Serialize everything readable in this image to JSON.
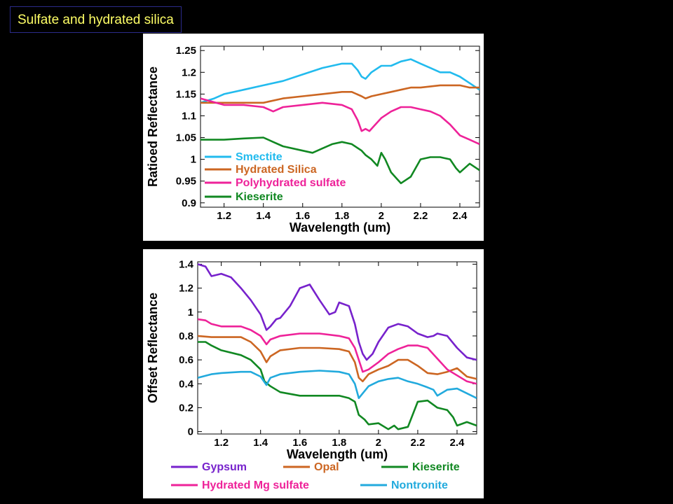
{
  "slide": {
    "title": "Sulfate and hydrated silica"
  },
  "chart_data": [
    {
      "type": "line",
      "xlabel": "Wavelength (um)",
      "ylabel": "Ratioed Reflectance",
      "xlim": [
        1.08,
        2.5
      ],
      "ylim": [
        0.89,
        1.26
      ],
      "xticks": [
        "1.2",
        "1.4",
        "1.6",
        "1.8",
        "2",
        "2.2",
        "2.4"
      ],
      "yticks": [
        "0.9",
        "0.95",
        "1",
        "1.05",
        "1.1",
        "1.15",
        "1.2",
        "1.25"
      ],
      "legend_position": "bottom-left inside",
      "series": [
        {
          "name": "Smectite",
          "color": "#22bbee",
          "x": [
            1.08,
            1.15,
            1.2,
            1.3,
            1.4,
            1.5,
            1.6,
            1.7,
            1.8,
            1.85,
            1.88,
            1.9,
            1.92,
            1.95,
            2.0,
            2.05,
            2.1,
            2.15,
            2.2,
            2.25,
            2.3,
            2.35,
            2.4,
            2.45,
            2.5
          ],
          "y": [
            1.13,
            1.14,
            1.15,
            1.16,
            1.17,
            1.18,
            1.195,
            1.21,
            1.22,
            1.22,
            1.205,
            1.19,
            1.185,
            1.2,
            1.215,
            1.215,
            1.225,
            1.23,
            1.22,
            1.21,
            1.2,
            1.2,
            1.19,
            1.175,
            1.16
          ]
        },
        {
          "name": "Hydrated Silica",
          "color": "#cc6622",
          "x": [
            1.08,
            1.15,
            1.2,
            1.3,
            1.4,
            1.5,
            1.6,
            1.7,
            1.8,
            1.85,
            1.9,
            1.92,
            1.95,
            2.0,
            2.05,
            2.1,
            2.15,
            2.2,
            2.3,
            2.4,
            2.45,
            2.5
          ],
          "y": [
            1.13,
            1.13,
            1.13,
            1.13,
            1.13,
            1.14,
            1.145,
            1.15,
            1.155,
            1.155,
            1.145,
            1.14,
            1.145,
            1.15,
            1.155,
            1.16,
            1.165,
            1.165,
            1.17,
            1.17,
            1.165,
            1.165
          ]
        },
        {
          "name": "Polyhydrated sulfate",
          "color": "#ee2299",
          "x": [
            1.08,
            1.12,
            1.2,
            1.3,
            1.4,
            1.45,
            1.5,
            1.6,
            1.7,
            1.8,
            1.85,
            1.88,
            1.9,
            1.92,
            1.94,
            1.96,
            2.0,
            2.05,
            2.1,
            2.15,
            2.2,
            2.25,
            2.3,
            2.35,
            2.4,
            2.45,
            2.5
          ],
          "y": [
            1.14,
            1.135,
            1.125,
            1.125,
            1.12,
            1.11,
            1.12,
            1.125,
            1.13,
            1.125,
            1.115,
            1.09,
            1.065,
            1.07,
            1.065,
            1.075,
            1.095,
            1.11,
            1.12,
            1.12,
            1.115,
            1.11,
            1.1,
            1.08,
            1.055,
            1.045,
            1.035
          ]
        },
        {
          "name": "Kieserite",
          "color": "#118822",
          "x": [
            1.08,
            1.15,
            1.2,
            1.3,
            1.4,
            1.45,
            1.5,
            1.6,
            1.65,
            1.7,
            1.75,
            1.8,
            1.85,
            1.9,
            1.92,
            1.95,
            1.98,
            2.0,
            2.02,
            2.05,
            2.08,
            2.1,
            2.15,
            2.2,
            2.25,
            2.3,
            2.35,
            2.38,
            2.4,
            2.45,
            2.5
          ],
          "y": [
            1.045,
            1.045,
            1.045,
            1.048,
            1.05,
            1.04,
            1.03,
            1.02,
            1.015,
            1.025,
            1.035,
            1.04,
            1.035,
            1.02,
            1.01,
            1.0,
            0.985,
            1.015,
            1.0,
            0.97,
            0.955,
            0.945,
            0.96,
            1.0,
            1.005,
            1.005,
            1.0,
            0.98,
            0.97,
            0.99,
            0.975
          ]
        }
      ]
    },
    {
      "type": "line",
      "xlabel": "Wavelength (um)",
      "ylabel": "Offset Reflectance",
      "xlim": [
        1.08,
        2.5
      ],
      "ylim": [
        -0.02,
        1.42
      ],
      "xticks": [
        "1.2",
        "1.4",
        "1.6",
        "1.8",
        "2",
        "2.2",
        "2.4"
      ],
      "yticks": [
        "0",
        "0.2",
        "0.4",
        "0.6",
        "0.8",
        "1",
        "1.2",
        "1.4"
      ],
      "legend_position": "bottom outside",
      "series": [
        {
          "name": "Gypsum",
          "color": "#7722cc",
          "x": [
            1.08,
            1.12,
            1.15,
            1.2,
            1.25,
            1.3,
            1.35,
            1.4,
            1.43,
            1.45,
            1.48,
            1.5,
            1.55,
            1.6,
            1.65,
            1.7,
            1.75,
            1.78,
            1.8,
            1.85,
            1.88,
            1.9,
            1.92,
            1.94,
            1.97,
            2.0,
            2.05,
            2.1,
            2.15,
            2.2,
            2.25,
            2.28,
            2.3,
            2.35,
            2.4,
            2.45,
            2.5
          ],
          "y": [
            1.4,
            1.38,
            1.3,
            1.32,
            1.29,
            1.2,
            1.1,
            0.98,
            0.85,
            0.88,
            0.94,
            0.95,
            1.05,
            1.2,
            1.23,
            1.1,
            0.98,
            1.0,
            1.08,
            1.05,
            0.9,
            0.75,
            0.65,
            0.6,
            0.65,
            0.75,
            0.87,
            0.9,
            0.88,
            0.82,
            0.79,
            0.8,
            0.82,
            0.8,
            0.7,
            0.62,
            0.6
          ]
        },
        {
          "name": "Opal",
          "color": "#cc6622",
          "x": [
            1.08,
            1.15,
            1.2,
            1.3,
            1.35,
            1.4,
            1.43,
            1.45,
            1.5,
            1.6,
            1.7,
            1.8,
            1.85,
            1.88,
            1.9,
            1.92,
            1.95,
            2.0,
            2.05,
            2.1,
            2.15,
            2.2,
            2.25,
            2.3,
            2.35,
            2.4,
            2.45,
            2.5
          ],
          "y": [
            0.8,
            0.79,
            0.79,
            0.79,
            0.75,
            0.67,
            0.58,
            0.63,
            0.68,
            0.7,
            0.7,
            0.69,
            0.67,
            0.58,
            0.45,
            0.42,
            0.48,
            0.52,
            0.55,
            0.6,
            0.6,
            0.55,
            0.49,
            0.48,
            0.5,
            0.53,
            0.46,
            0.44
          ]
        },
        {
          "name": "Kieserite",
          "color": "#118822",
          "x": [
            1.08,
            1.12,
            1.15,
            1.2,
            1.3,
            1.35,
            1.4,
            1.42,
            1.45,
            1.5,
            1.6,
            1.7,
            1.8,
            1.85,
            1.88,
            1.9,
            1.93,
            1.95,
            2.0,
            2.05,
            2.08,
            2.1,
            2.15,
            2.2,
            2.25,
            2.3,
            2.35,
            2.38,
            2.4,
            2.45,
            2.5
          ],
          "y": [
            0.75,
            0.75,
            0.72,
            0.68,
            0.64,
            0.6,
            0.52,
            0.42,
            0.38,
            0.33,
            0.3,
            0.3,
            0.3,
            0.28,
            0.25,
            0.14,
            0.1,
            0.06,
            0.07,
            0.02,
            0.05,
            0.02,
            0.04,
            0.25,
            0.26,
            0.2,
            0.18,
            0.12,
            0.05,
            0.08,
            0.05
          ]
        },
        {
          "name": "Hydrated Mg sulfate",
          "color": "#ee2299",
          "x": [
            1.08,
            1.12,
            1.15,
            1.2,
            1.3,
            1.35,
            1.4,
            1.43,
            1.45,
            1.5,
            1.6,
            1.7,
            1.8,
            1.85,
            1.88,
            1.9,
            1.92,
            1.95,
            2.0,
            2.05,
            2.1,
            2.15,
            2.2,
            2.25,
            2.3,
            2.35,
            2.4,
            2.45,
            2.5
          ],
          "y": [
            0.94,
            0.93,
            0.9,
            0.88,
            0.88,
            0.85,
            0.8,
            0.73,
            0.77,
            0.8,
            0.82,
            0.82,
            0.8,
            0.78,
            0.7,
            0.6,
            0.5,
            0.52,
            0.58,
            0.65,
            0.69,
            0.72,
            0.72,
            0.7,
            0.61,
            0.52,
            0.47,
            0.42,
            0.4
          ]
        },
        {
          "name": "Nontronite",
          "color": "#22aadd",
          "x": [
            1.08,
            1.15,
            1.2,
            1.3,
            1.35,
            1.4,
            1.43,
            1.45,
            1.5,
            1.6,
            1.7,
            1.8,
            1.85,
            1.88,
            1.9,
            1.92,
            1.95,
            2.0,
            2.05,
            2.1,
            2.15,
            2.2,
            2.25,
            2.28,
            2.3,
            2.35,
            2.4,
            2.45,
            2.5
          ],
          "y": [
            0.45,
            0.48,
            0.49,
            0.5,
            0.5,
            0.46,
            0.39,
            0.45,
            0.48,
            0.5,
            0.51,
            0.5,
            0.48,
            0.4,
            0.28,
            0.32,
            0.38,
            0.42,
            0.44,
            0.45,
            0.42,
            0.4,
            0.37,
            0.35,
            0.3,
            0.35,
            0.36,
            0.32,
            0.28
          ]
        }
      ]
    }
  ]
}
